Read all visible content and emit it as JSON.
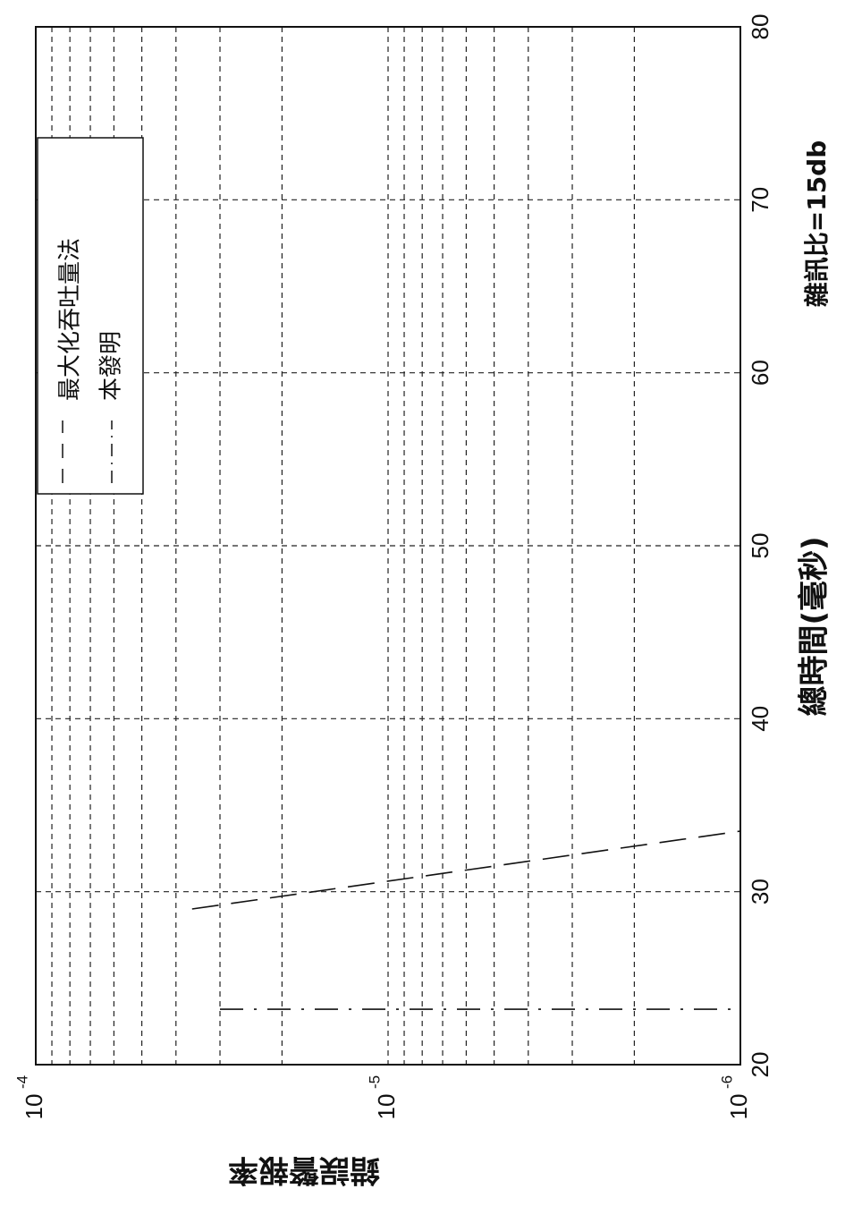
{
  "chart_data": {
    "type": "line",
    "title": "",
    "xlabel": "總時間(毫秒)",
    "ylabel": "錯誤警報率",
    "annotation": "雜訊比=15db",
    "xlim": [
      20,
      80
    ],
    "ylim": [
      1e-06,
      0.0001
    ],
    "yscale": "log",
    "grid": true,
    "legend_position": "top-right",
    "x_ticks": [
      20,
      30,
      40,
      50,
      60,
      70,
      80
    ],
    "y_ticks": [
      {
        "base": "10",
        "exp": "-4",
        "value": 0.0001
      },
      {
        "base": "10",
        "exp": "-5",
        "value": 1e-05
      },
      {
        "base": "10",
        "exp": "-6",
        "value": 1e-06
      }
    ],
    "series": [
      {
        "name": "最大化吞吐量法",
        "style": "dashed",
        "x": [
          29,
          33.5
        ],
        "y": [
          3.6e-05,
          1e-06
        ]
      },
      {
        "name": "本發明",
        "style": "dashdot",
        "x": [
          23.2,
          23.2
        ],
        "y": [
          3e-05,
          1e-06
        ]
      }
    ]
  }
}
